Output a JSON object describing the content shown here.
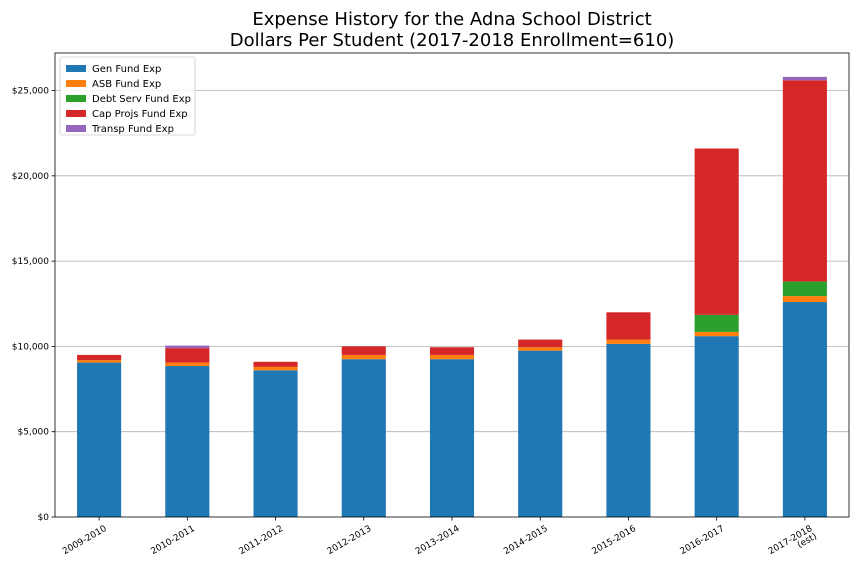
{
  "chart_data": {
    "type": "bar",
    "stacked": true,
    "title": "Expense History for the Adna School District",
    "subtitle": "Dollars Per Student (2017-2018 Enrollment=610)",
    "xlabel": "",
    "ylabel": "",
    "categories": [
      "2009-2010",
      "2010-2011",
      "2011-2012",
      "2012-2013",
      "2013-2014",
      "2014-2015",
      "2015-2016",
      "2016-2017",
      "2017-2018\n(est)"
    ],
    "series": [
      {
        "name": "Gen Fund Exp",
        "color": "#1f77b4",
        "values": [
          9050,
          8850,
          8600,
          9250,
          9250,
          9750,
          10150,
          10600,
          12600
        ]
      },
      {
        "name": "ASB Fund Exp",
        "color": "#ff7f0e",
        "values": [
          150,
          200,
          200,
          250,
          250,
          200,
          250,
          250,
          350
        ]
      },
      {
        "name": "Debt Serv Fund Exp",
        "color": "#2ca02c",
        "values": [
          0,
          0,
          0,
          0,
          0,
          0,
          0,
          1000,
          850
        ]
      },
      {
        "name": "Cap Projs Fund Exp",
        "color": "#d62728",
        "values": [
          300,
          850,
          300,
          500,
          450,
          450,
          1600,
          9750,
          11800
        ]
      },
      {
        "name": "Transp Fund Exp",
        "color": "#9467bd",
        "values": [
          0,
          150,
          0,
          0,
          0,
          0,
          0,
          0,
          200
        ]
      }
    ],
    "ylim": [
      0,
      27200
    ],
    "yticks": [
      0,
      5000,
      10000,
      15000,
      20000,
      25000
    ],
    "ytick_labels": [
      "$0",
      "$5,000",
      "$10,000",
      "$15,000",
      "$20,000",
      "$25,000"
    ],
    "grid": "horizontal",
    "legend_position": "top-left"
  }
}
